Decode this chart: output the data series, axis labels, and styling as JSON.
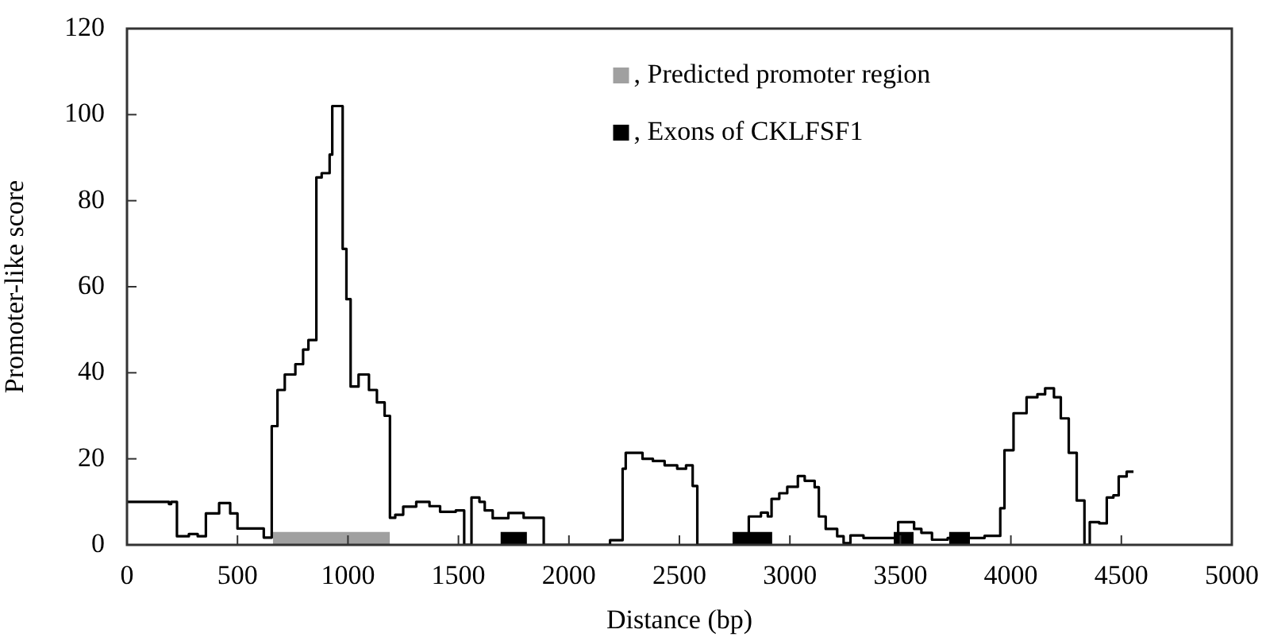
{
  "chart_data": {
    "type": "step",
    "xlabel": "Distance (bp)",
    "ylabel": "Promoter-like score",
    "xlim": [
      0,
      5000
    ],
    "xticks": [
      0,
      500,
      1000,
      1500,
      2000,
      2500,
      3000,
      3500,
      4000,
      4500,
      5000
    ],
    "ylim": [
      0,
      120
    ],
    "yticks": [
      0,
      20,
      40,
      60,
      80,
      100,
      120
    ],
    "legend": "top",
    "series": [
      {
        "name": ", Predicted promoter region",
        "type": "area",
        "color": "#a0a0a0",
        "x": [
          660,
          1190
        ],
        "values": [
          3,
          3
        ]
      },
      {
        "name": ", Exons of CKLFSF1",
        "type": "area",
        "color": "#000000",
        "x": [
          1690,
          1810,
          1811,
          2740,
          2920,
          2921,
          3470,
          3560,
          3561,
          3720,
          3815
        ],
        "values": [
          3,
          3,
          null,
          3,
          3,
          null,
          3,
          3,
          null,
          3,
          3
        ]
      },
      {
        "color": "#000000",
        "x": [
          0,
          190,
          200,
          226,
          280,
          320,
          357,
          417,
          467,
          500,
          619,
          655,
          681,
          714,
          762,
          797,
          821,
          857,
          881,
          917,
          929,
          976,
          993,
          1012,
          1048,
          1095,
          1131,
          1166,
          1190,
          1214,
          1250,
          1309,
          1369,
          1417,
          1488,
          1526,
          1559,
          1595,
          1619,
          1655,
          1726,
          1795,
          1886,
          2186,
          2243,
          2257,
          2333,
          2380,
          2433,
          2490,
          2530,
          2560,
          2581,
          2814,
          2869,
          2900,
          2917,
          2952,
          2988,
          3036,
          3067,
          3112,
          3131,
          3162,
          3214,
          3243,
          3274,
          3333,
          3490,
          3562,
          3595,
          3643,
          3714,
          3881,
          3952,
          3971,
          4012,
          4071,
          4120,
          4155,
          4195,
          4226,
          4262,
          4298,
          4333,
          4357,
          4400,
          4434,
          4464,
          4488,
          4524,
          4555
        ],
        "values": [
          10,
          9.5,
          10,
          2,
          2.5,
          2,
          7.3,
          9.7,
          7.3,
          3.8,
          1.7,
          27.6,
          36,
          39.6,
          42,
          45.4,
          47.6,
          85.4,
          86.4,
          90.7,
          102,
          68.8,
          57.1,
          36.8,
          39.6,
          36,
          33.1,
          30,
          6.3,
          7,
          8.9,
          10,
          9,
          7.7,
          8,
          0,
          11,
          10,
          8,
          6.2,
          7.4,
          6.3,
          0,
          1.1,
          17.7,
          21.4,
          20,
          19.5,
          18.5,
          17.7,
          18.5,
          13.7,
          0,
          6.6,
          7.5,
          6.6,
          10.7,
          12,
          13.5,
          16,
          14.9,
          13.4,
          6.6,
          3.7,
          2,
          0.4,
          2.2,
          1.6,
          5.3,
          3.7,
          2.8,
          1.2,
          1.6,
          2.1,
          8.5,
          22,
          30.6,
          34.3,
          35,
          36.4,
          34.3,
          29.4,
          21.4,
          10.3,
          0,
          5.3,
          5,
          11,
          11.5,
          15.9,
          17,
          17
        ]
      }
    ]
  }
}
